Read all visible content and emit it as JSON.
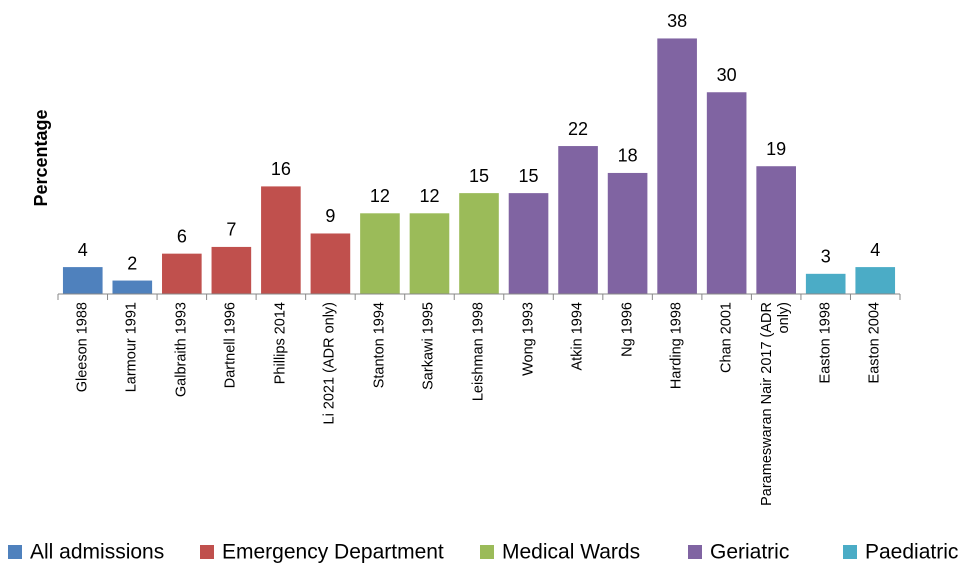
{
  "chart_data": {
    "type": "bar",
    "y_label": "Percentage",
    "categories": [
      "Gleeson 1988",
      "Larmour 1991",
      "Galbraith 1993",
      "Dartnell 1996",
      "Phillips 2014",
      "Li 2021 (ADR only)",
      "Stanton 1994",
      "Sarkawi 1995",
      "Leishman 1998",
      "Wong 1993",
      "Atkin 1994",
      "Ng 1996",
      "Harding 1998",
      "Chan 2001",
      "Parameswaran Nair 2017 (ADR only)",
      "Easton 1998",
      "Easton 2004"
    ],
    "series": [
      {
        "name": "All admissions",
        "color": "#4f81bd",
        "values": [
          4,
          2,
          null,
          null,
          null,
          null,
          null,
          null,
          null,
          null,
          null,
          null,
          null,
          null,
          null,
          null,
          null
        ]
      },
      {
        "name": "Emergency Department",
        "color": "#c0504d",
        "values": [
          null,
          null,
          6,
          7,
          16,
          9,
          null,
          null,
          null,
          null,
          null,
          null,
          null,
          null,
          null,
          null,
          null
        ]
      },
      {
        "name": "Medical Wards",
        "color": "#9bbb59",
        "values": [
          null,
          null,
          null,
          null,
          null,
          null,
          12,
          12,
          15,
          null,
          null,
          null,
          null,
          null,
          null,
          null,
          null
        ]
      },
      {
        "name": "Geriatric",
        "color": "#8064a2",
        "values": [
          null,
          null,
          null,
          null,
          null,
          null,
          null,
          null,
          null,
          15,
          22,
          18,
          38,
          30,
          19,
          null,
          null
        ]
      },
      {
        "name": "Paediatric",
        "color": "#4bacc6",
        "values": [
          null,
          null,
          null,
          null,
          null,
          null,
          null,
          null,
          null,
          null,
          null,
          null,
          null,
          null,
          null,
          3,
          4
        ]
      }
    ],
    "ylim": [
      0,
      40
    ],
    "legend": "bottom"
  }
}
